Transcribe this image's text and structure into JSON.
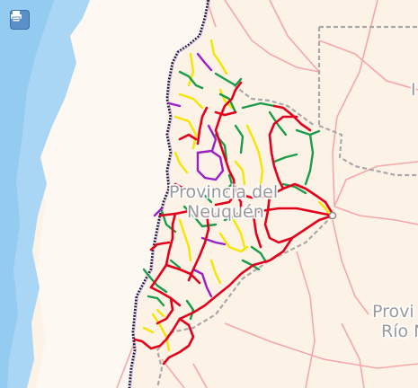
{
  "map": {
    "labels": {
      "neuquen_line1": "Provincia del",
      "neuquen_line2": "Neuquén",
      "rionegro_line1": "Provi",
      "rionegro_line2": "Río N",
      "edge_letter": "I"
    },
    "print_icon": "print-icon",
    "legend_colors": {
      "route_national": "#e3001b",
      "route_provincial_a": "#1a9c4a",
      "route_provincial_b": "#f4e600",
      "route_other": "#9b1fc6",
      "province_border": "#a9a9a9",
      "international_border": "#1a1a3a",
      "minor_road": "#f6a8a8",
      "ocean": "#a9d6f4"
    }
  }
}
